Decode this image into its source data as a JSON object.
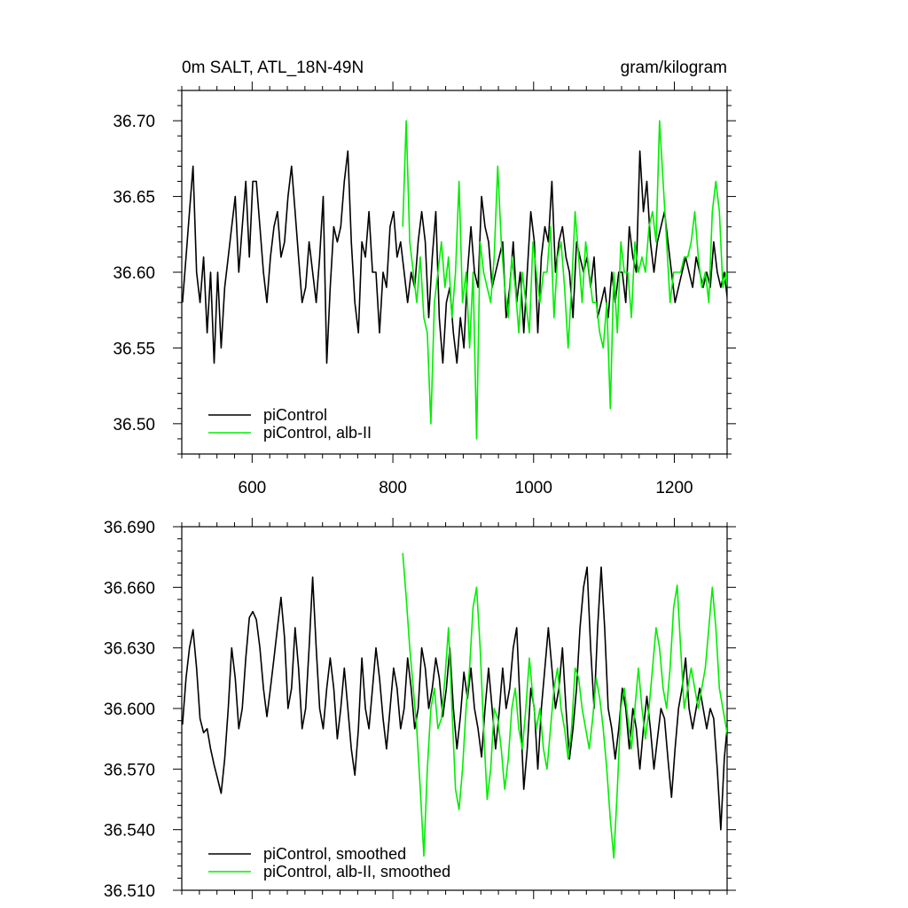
{
  "chart_data": [
    {
      "type": "line",
      "title_left": "0m SALT, ATL_18N-49N",
      "title_right": "gram/kilogram",
      "xlabel": "",
      "ylabel": "",
      "xlim": [
        500,
        1275
      ],
      "ylim": [
        36.48,
        36.72
      ],
      "xticks": [
        600,
        800,
        1000,
        1200
      ],
      "xtick_labels": [
        "600",
        "800",
        "1000",
        "1200"
      ],
      "yticks": [
        36.5,
        36.55,
        36.6,
        36.65,
        36.7
      ],
      "ytick_labels": [
        "36.50",
        "36.55",
        "36.60",
        "36.65",
        "36.70"
      ],
      "legend_position": "bottom-left",
      "series": [
        {
          "name": "piControl",
          "color": "#000000",
          "x_start": 501,
          "x_step": 5,
          "values": [
            36.58,
            36.61,
            36.64,
            36.67,
            36.6,
            36.58,
            36.61,
            36.56,
            36.6,
            36.54,
            36.6,
            36.55,
            36.59,
            36.61,
            36.63,
            36.65,
            36.6,
            36.63,
            36.66,
            36.61,
            36.66,
            36.66,
            36.63,
            36.6,
            36.58,
            36.61,
            36.63,
            36.64,
            36.61,
            36.62,
            36.65,
            36.67,
            36.64,
            36.61,
            36.58,
            36.59,
            36.62,
            36.6,
            36.58,
            36.61,
            36.65,
            36.54,
            36.59,
            36.63,
            36.62,
            36.63,
            36.66,
            36.68,
            36.62,
            36.58,
            36.56,
            36.62,
            36.61,
            36.64,
            36.6,
            36.6,
            36.56,
            36.6,
            36.59,
            36.63,
            36.64,
            36.61,
            36.62,
            36.6,
            36.58,
            36.6,
            36.59,
            36.62,
            36.64,
            36.62,
            36.57,
            36.61,
            36.64,
            36.57,
            36.54,
            36.58,
            36.59,
            36.56,
            36.54,
            36.57,
            36.55,
            36.6,
            36.63,
            36.6,
            36.59,
            36.65,
            36.63,
            36.62,
            36.59,
            36.6,
            36.61,
            36.62,
            36.57,
            36.59,
            36.62,
            36.58,
            36.6,
            36.56,
            36.6,
            36.64,
            36.62,
            36.56,
            36.61,
            36.63,
            36.62,
            36.66,
            36.6,
            36.62,
            36.63,
            36.61,
            36.6,
            36.57,
            36.62,
            36.61,
            36.6,
            36.61,
            36.59,
            36.61,
            36.57,
            36.58,
            36.59,
            36.57,
            36.6,
            36.58,
            36.6,
            36.6,
            36.58,
            36.63,
            36.61,
            36.6,
            36.68,
            36.64,
            36.66,
            36.62,
            36.6,
            36.62,
            36.63,
            36.64,
            36.62,
            36.6,
            36.58,
            36.59,
            36.6,
            36.61,
            36.6,
            36.59,
            36.61,
            36.6,
            36.59,
            36.6,
            36.59,
            36.62,
            36.6,
            36.59,
            36.6,
            36.58,
            36.59,
            36.6
          ]
        },
        {
          "name": "piControl, alb-II",
          "color": "#00ee00",
          "x_start": 814,
          "x_step": 5,
          "values": [
            36.63,
            36.7,
            36.62,
            36.6,
            36.58,
            36.61,
            36.57,
            36.56,
            36.5,
            36.58,
            36.6,
            36.62,
            36.59,
            36.61,
            36.57,
            36.6,
            36.66,
            36.58,
            36.6,
            36.55,
            36.6,
            36.49,
            36.62,
            36.6,
            36.59,
            36.58,
            36.61,
            36.67,
            36.62,
            36.59,
            36.57,
            36.61,
            36.59,
            36.56,
            36.6,
            36.58,
            36.56,
            36.62,
            36.6,
            36.58,
            36.6,
            36.6,
            36.63,
            36.57,
            36.61,
            36.62,
            36.59,
            36.55,
            36.59,
            36.64,
            36.61,
            36.58,
            36.62,
            36.6,
            36.58,
            36.58,
            36.56,
            36.55,
            36.58,
            36.51,
            36.6,
            36.56,
            36.62,
            36.6,
            36.6,
            36.57,
            36.62,
            36.6,
            36.61,
            36.6,
            36.63,
            36.64,
            36.62,
            36.7,
            36.66,
            36.62,
            36.58,
            36.6,
            36.6,
            36.6,
            36.61,
            36.61,
            36.62,
            36.64,
            36.61,
            36.59,
            36.6,
            36.58,
            36.64,
            36.66,
            36.64,
            36.59,
            36.6,
            36.57
          ]
        }
      ]
    },
    {
      "type": "line",
      "title_left": "",
      "title_right": "",
      "xlabel": "",
      "ylabel": "",
      "xlim": [
        500,
        1275
      ],
      "ylim": [
        36.51,
        36.69
      ],
      "xticks": [
        600,
        800,
        1000,
        1200
      ],
      "xtick_labels": [],
      "yticks": [
        36.51,
        36.54,
        36.57,
        36.6,
        36.63,
        36.66,
        36.69
      ],
      "ytick_labels": [
        "36.510",
        "36.540",
        "36.570",
        "36.600",
        "36.630",
        "36.660",
        "36.690"
      ],
      "legend_position": "bottom-left",
      "series": [
        {
          "name": "piControl, smoothed",
          "color": "#000000",
          "x_start": 501,
          "x_step": 5,
          "values": [
            36.592,
            36.615,
            36.63,
            36.639,
            36.62,
            36.595,
            36.588,
            36.59,
            36.58,
            36.572,
            36.565,
            36.558,
            36.575,
            36.6,
            36.63,
            36.615,
            36.59,
            36.6,
            36.625,
            36.645,
            36.648,
            36.644,
            36.63,
            36.61,
            36.596,
            36.61,
            36.625,
            36.64,
            36.655,
            36.635,
            36.6,
            36.61,
            36.64,
            36.62,
            36.59,
            36.6,
            36.63,
            36.665,
            36.63,
            36.6,
            36.59,
            36.61,
            36.625,
            36.61,
            36.585,
            36.6,
            36.62,
            36.6,
            36.58,
            36.567,
            36.59,
            36.625,
            36.6,
            36.59,
            36.61,
            36.63,
            36.615,
            36.595,
            36.58,
            36.6,
            36.62,
            36.61,
            36.59,
            36.6,
            36.625,
            36.61,
            36.59,
            36.6,
            36.63,
            36.62,
            36.6,
            36.61,
            36.625,
            36.615,
            36.596,
            36.61,
            36.63,
            36.6,
            36.58,
            36.596,
            36.618,
            36.605,
            36.62,
            36.6,
            36.59,
            36.576,
            36.6,
            36.62,
            36.6,
            36.58,
            36.598,
            36.62,
            36.6,
            36.61,
            36.63,
            36.64,
            36.6,
            36.56,
            36.58,
            36.61,
            36.6,
            36.57,
            36.6,
            36.62,
            36.64,
            36.62,
            36.6,
            36.61,
            36.63,
            36.6,
            36.575,
            36.59,
            36.61,
            36.64,
            36.66,
            36.67,
            36.63,
            36.6,
            36.64,
            36.67,
            36.64,
            36.6,
            36.59,
            36.575,
            36.59,
            36.61,
            36.6,
            36.58,
            36.6,
            36.59,
            36.57,
            36.59,
            36.606,
            36.59,
            36.57,
            36.585,
            36.6,
            36.595,
            36.575,
            36.556,
            36.58,
            36.6,
            36.61,
            36.625,
            36.6,
            36.59,
            36.6,
            36.61,
            36.6,
            36.59,
            36.6,
            36.595,
            36.57,
            36.54,
            36.575,
            36.594
          ]
        },
        {
          "name": "piControl, alb-II, smoothed",
          "color": "#00ee00",
          "x_start": 814,
          "x_step": 5,
          "values": [
            36.677,
            36.655,
            36.63,
            36.61,
            36.59,
            36.56,
            36.527,
            36.57,
            36.6,
            36.61,
            36.59,
            36.595,
            36.615,
            36.64,
            36.6,
            36.56,
            36.55,
            36.57,
            36.6,
            36.62,
            36.65,
            36.66,
            36.63,
            36.59,
            36.555,
            36.57,
            36.6,
            36.595,
            36.58,
            36.56,
            36.575,
            36.6,
            36.61,
            36.59,
            36.58,
            36.6,
            36.625,
            36.605,
            36.59,
            36.6,
            36.58,
            36.57,
            36.59,
            36.61,
            36.62,
            36.6,
            36.59,
            36.575,
            36.59,
            36.62,
            36.615,
            36.6,
            36.59,
            36.58,
            36.595,
            36.615,
            36.605,
            36.59,
            36.57,
            36.545,
            36.526,
            36.56,
            36.6,
            36.61,
            36.595,
            36.58,
            36.6,
            36.62,
            36.6,
            36.585,
            36.6,
            36.62,
            36.64,
            36.63,
            36.61,
            36.6,
            36.62,
            36.65,
            36.661,
            36.63,
            36.6,
            36.61,
            36.62,
            36.61,
            36.6,
            36.61,
            36.62,
            36.64,
            36.66,
            36.64,
            36.61,
            36.6,
            36.59,
            36.58
          ]
        }
      ]
    }
  ]
}
